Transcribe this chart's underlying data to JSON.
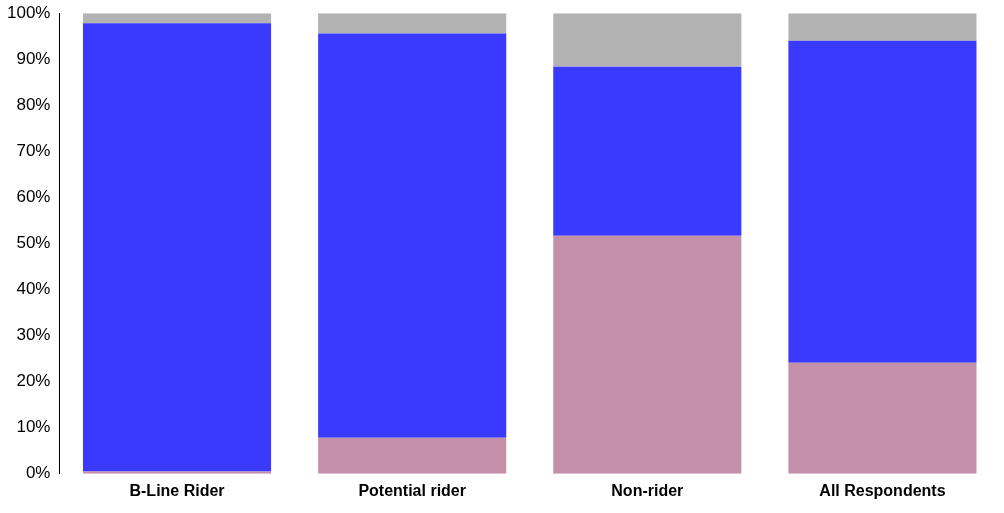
{
  "chart_data": {
    "type": "bar",
    "stacked": true,
    "categories": [
      "B-Line Rider",
      "Potential rider",
      "Non-rider",
      "All Respondents"
    ],
    "series": [
      {
        "color": "#c48fa9",
        "values": [
          0.5,
          7.8,
          51.7,
          24.1
        ]
      },
      {
        "color": "#3a3aff",
        "values": [
          97.3,
          87.8,
          36.7,
          69.9
        ]
      },
      {
        "color": "#b3b3b3",
        "values": [
          2.2,
          4.4,
          11.6,
          6.0
        ]
      }
    ],
    "ylim": [
      0,
      100
    ],
    "yticks": [
      {
        "value": 0,
        "label": "0%"
      },
      {
        "value": 10,
        "label": "10%"
      },
      {
        "value": 20,
        "label": "20%"
      },
      {
        "value": 30,
        "label": "30%"
      },
      {
        "value": 40,
        "label": "40%"
      },
      {
        "value": 50,
        "label": "50%"
      },
      {
        "value": 60,
        "label": "60%"
      },
      {
        "value": 70,
        "label": "70%"
      },
      {
        "value": 80,
        "label": "80%"
      },
      {
        "value": 90,
        "label": "90%"
      },
      {
        "value": 100,
        "label": "100%"
      }
    ],
    "grid": false,
    "legend": false
  }
}
